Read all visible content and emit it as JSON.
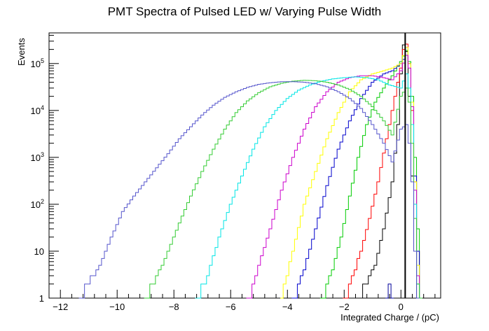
{
  "chart_data": {
    "type": "histogram",
    "title": "PMT Spectra of Pulsed LED w/ Varying Pulse Width",
    "xlabel": "Integrated Charge / (pC)",
    "ylabel": "Events",
    "x_scale": "linear",
    "y_scale": "log",
    "xlim": [
      -12.4,
      1.4
    ],
    "ylim": [
      1,
      450000
    ],
    "grid": false,
    "legend": "none",
    "x_ticks": [
      -12,
      -10,
      -8,
      -6,
      -4,
      -2,
      0
    ],
    "x_tick_labels": [
      "−12",
      "−10",
      "−8",
      "−6",
      "−4",
      "−2",
      "0"
    ],
    "y_ticks": [
      {
        "value": 1,
        "label": "1"
      },
      {
        "value": 10,
        "label": "10"
      },
      {
        "value": 100,
        "label": "10",
        "exponent": "2"
      },
      {
        "value": 1000,
        "label": "10",
        "exponent": "3"
      },
      {
        "value": 10000,
        "label": "10",
        "exponent": "4"
      },
      {
        "value": 100000,
        "label": "10",
        "exponent": "5"
      }
    ],
    "vertical_line": {
      "x": 0.15,
      "color": "#000000"
    },
    "series": [
      {
        "color": "#000000",
        "points": [
          [
            -1.6,
            1
          ],
          [
            -1.2,
            2
          ],
          [
            -0.9,
            5
          ],
          [
            -0.6,
            30
          ],
          [
            -0.3,
            300
          ],
          [
            -0.1,
            5000
          ],
          [
            0.0,
            60000
          ],
          [
            0.1,
            250000
          ],
          [
            0.2,
            180000
          ],
          [
            0.3,
            20000
          ],
          [
            0.4,
            400
          ],
          [
            0.5,
            10
          ],
          [
            0.6,
            1
          ]
        ]
      },
      {
        "color": "#ff0000",
        "points": [
          [
            -2.0,
            1
          ],
          [
            -1.7,
            3
          ],
          [
            -1.4,
            10
          ],
          [
            -1.1,
            50
          ],
          [
            -0.8,
            300
          ],
          [
            -0.5,
            2500
          ],
          [
            -0.2,
            20000
          ],
          [
            0.0,
            80000
          ],
          [
            0.1,
            200000
          ],
          [
            0.2,
            260000
          ],
          [
            0.3,
            100000
          ],
          [
            0.4,
            10000
          ],
          [
            0.5,
            300
          ],
          [
            0.6,
            10
          ],
          [
            0.7,
            1
          ]
        ]
      },
      {
        "color": "#00cc00",
        "points": [
          [
            -2.8,
            1
          ],
          [
            -2.4,
            4
          ],
          [
            -2.1,
            20
          ],
          [
            -1.8,
            150
          ],
          [
            -1.5,
            1000
          ],
          [
            -1.2,
            5000
          ],
          [
            -0.9,
            15000
          ],
          [
            -0.6,
            30000
          ],
          [
            -0.3,
            55000
          ],
          [
            0.0,
            110000
          ],
          [
            0.2,
            190000
          ],
          [
            0.3,
            110000
          ],
          [
            0.4,
            20000
          ],
          [
            0.5,
            1000
          ],
          [
            0.6,
            30
          ],
          [
            0.7,
            1
          ]
        ]
      },
      {
        "color": "#0000cc",
        "points": [
          [
            -3.8,
            1
          ],
          [
            -3.4,
            4
          ],
          [
            -3.0,
            30
          ],
          [
            -2.6,
            250
          ],
          [
            -2.2,
            1500
          ],
          [
            -1.8,
            6000
          ],
          [
            -1.4,
            18000
          ],
          [
            -1.0,
            40000
          ],
          [
            -0.6,
            60000
          ],
          [
            -0.3,
            70000
          ],
          [
            0.0,
            100000
          ],
          [
            0.2,
            150000
          ],
          [
            0.3,
            100000
          ],
          [
            0.4,
            15000
          ],
          [
            0.5,
            400
          ],
          [
            0.6,
            10
          ],
          [
            0.7,
            1
          ]
        ]
      },
      {
        "color": "#ffff00",
        "points": [
          [
            -4.2,
            1
          ],
          [
            -3.8,
            10
          ],
          [
            -3.4,
            100
          ],
          [
            -3.0,
            500
          ],
          [
            -2.6,
            2500
          ],
          [
            -2.2,
            9000
          ],
          [
            -1.8,
            25000
          ],
          [
            -1.4,
            45000
          ],
          [
            -1.0,
            60000
          ],
          [
            -0.6,
            70000
          ],
          [
            -0.3,
            80000
          ],
          [
            0.0,
            100000
          ],
          [
            0.2,
            220000
          ],
          [
            0.3,
            100000
          ],
          [
            0.4,
            15000
          ],
          [
            0.5,
            300
          ],
          [
            0.6,
            5
          ],
          [
            0.7,
            1
          ]
        ]
      },
      {
        "color": "#cc00cc",
        "points": [
          [
            -5.4,
            1
          ],
          [
            -5.0,
            5
          ],
          [
            -4.6,
            30
          ],
          [
            -4.2,
            200
          ],
          [
            -3.8,
            1000
          ],
          [
            -3.4,
            4000
          ],
          [
            -3.0,
            12000
          ],
          [
            -2.6,
            25000
          ],
          [
            -2.2,
            40000
          ],
          [
            -1.8,
            50000
          ],
          [
            -1.4,
            55000
          ],
          [
            -1.0,
            55000
          ],
          [
            -0.6,
            50000
          ],
          [
            -0.3,
            45000
          ],
          [
            0.0,
            70000
          ],
          [
            0.2,
            150000
          ],
          [
            0.3,
            80000
          ],
          [
            0.4,
            12000
          ],
          [
            0.5,
            200
          ],
          [
            0.6,
            3
          ],
          [
            0.7,
            1
          ]
        ]
      },
      {
        "color": "#00e5e5",
        "points": [
          [
            -7.2,
            1
          ],
          [
            -6.8,
            3
          ],
          [
            -6.4,
            20
          ],
          [
            -6.0,
            100
          ],
          [
            -5.6,
            400
          ],
          [
            -5.2,
            1500
          ],
          [
            -4.8,
            4500
          ],
          [
            -4.4,
            10000
          ],
          [
            -4.0,
            18000
          ],
          [
            -3.6,
            27000
          ],
          [
            -3.2,
            35000
          ],
          [
            -2.8,
            42000
          ],
          [
            -2.4,
            47000
          ],
          [
            -2.0,
            50000
          ],
          [
            -1.6,
            52000
          ],
          [
            -1.2,
            50000
          ],
          [
            -0.8,
            45000
          ],
          [
            -0.4,
            35000
          ],
          [
            0.0,
            30000
          ],
          [
            0.2,
            60000
          ],
          [
            0.3,
            30000
          ],
          [
            0.4,
            5000
          ],
          [
            0.5,
            100
          ],
          [
            0.6,
            2
          ],
          [
            0.7,
            1
          ]
        ]
      },
      {
        "color": "#33cc33",
        "points": [
          [
            -9.0,
            1
          ],
          [
            -8.6,
            3
          ],
          [
            -8.2,
            10
          ],
          [
            -7.8,
            40
          ],
          [
            -7.4,
            150
          ],
          [
            -7.0,
            500
          ],
          [
            -6.6,
            1500
          ],
          [
            -6.2,
            4000
          ],
          [
            -5.8,
            9000
          ],
          [
            -5.4,
            16000
          ],
          [
            -5.0,
            24000
          ],
          [
            -4.6,
            32000
          ],
          [
            -4.2,
            38000
          ],
          [
            -3.8,
            42000
          ],
          [
            -3.4,
            44000
          ],
          [
            -3.0,
            43000
          ],
          [
            -2.6,
            40000
          ],
          [
            -2.2,
            35000
          ],
          [
            -1.8,
            28000
          ],
          [
            -1.4,
            20000
          ],
          [
            -1.0,
            12000
          ],
          [
            -0.6,
            6000
          ],
          [
            -0.3,
            3000
          ],
          [
            0.0,
            20000
          ],
          [
            0.2,
            30000
          ],
          [
            0.3,
            15000
          ],
          [
            0.4,
            2000
          ],
          [
            0.5,
            50
          ],
          [
            0.6,
            2
          ],
          [
            0.7,
            1
          ]
        ]
      },
      {
        "color": "#5555cc",
        "points": [
          [
            -11.3,
            1
          ],
          [
            -11.0,
            2
          ],
          [
            -10.6,
            5
          ],
          [
            -10.2,
            20
          ],
          [
            -9.8,
            70
          ],
          [
            -9.4,
            150
          ],
          [
            -9.0,
            300
          ],
          [
            -8.6,
            600
          ],
          [
            -8.2,
            1200
          ],
          [
            -7.8,
            2500
          ],
          [
            -7.4,
            4500
          ],
          [
            -7.0,
            8000
          ],
          [
            -6.6,
            13000
          ],
          [
            -6.2,
            19000
          ],
          [
            -5.8,
            25000
          ],
          [
            -5.4,
            31000
          ],
          [
            -5.0,
            36000
          ],
          [
            -4.6,
            39000
          ],
          [
            -4.2,
            41000
          ],
          [
            -3.8,
            41000
          ],
          [
            -3.4,
            40000
          ],
          [
            -3.0,
            37000
          ],
          [
            -2.6,
            32000
          ],
          [
            -2.2,
            25000
          ],
          [
            -1.8,
            18000
          ],
          [
            -1.4,
            11000
          ],
          [
            -1.0,
            5000
          ],
          [
            -0.6,
            2000
          ],
          [
            -0.3,
            800
          ],
          [
            0.0,
            4000
          ],
          [
            0.2,
            5000
          ],
          [
            0.3,
            2000
          ],
          [
            0.4,
            300
          ],
          [
            0.5,
            10
          ],
          [
            0.6,
            1
          ]
        ]
      },
      {
        "color": "#000099",
        "points": [
          [
            -0.5,
            1
          ],
          [
            -0.4,
            2
          ],
          [
            -0.3,
            1
          ]
        ]
      }
    ]
  }
}
